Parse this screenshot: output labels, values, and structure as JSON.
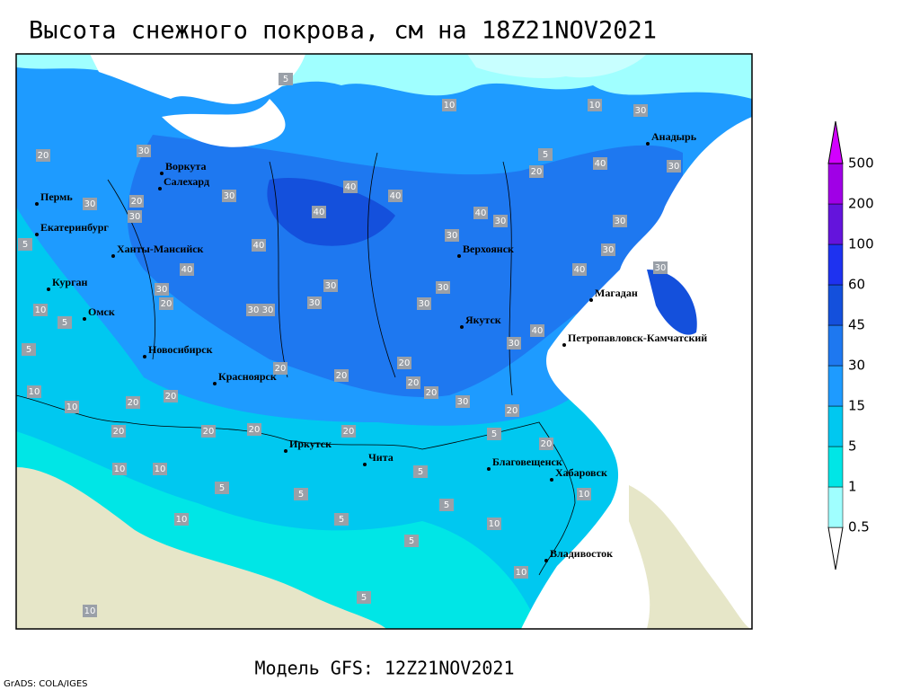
{
  "title": "Высота снежного покрова, см на 18Z21NOV2021",
  "map": {
    "cities": [
      "Воркута",
      "Салехард",
      "Пермь",
      "Екатеринбург",
      "Ханты-Мансийск",
      "Курган",
      "Омск",
      "Новосибирск",
      "Красноярск",
      "Иркутск",
      "Чита",
      "Верхоянск",
      "Якутск",
      "Магадан",
      "Петропавловск-Камчатский",
      "Анадырь",
      "Благовещенск",
      "Хабаровск",
      "Владивосток"
    ],
    "contour_labels": [
      5,
      10,
      10,
      30,
      5,
      20,
      40,
      30,
      20,
      30,
      20,
      30,
      30,
      30,
      40,
      40,
      40,
      40,
      30,
      30,
      30,
      30,
      40,
      30,
      40,
      30,
      20,
      40,
      30,
      30,
      30,
      30,
      40,
      30,
      10,
      5,
      30,
      30,
      20,
      20,
      20,
      20,
      20,
      30,
      20,
      10,
      10,
      20,
      20,
      20,
      20,
      20,
      20,
      20,
      5,
      5,
      5,
      5,
      5,
      5,
      10,
      5,
      10,
      10,
      5,
      10,
      10,
      10,
      10,
      5,
      5
    ]
  },
  "legend": {
    "levels": [
      "0.5",
      "1",
      "5",
      "15",
      "30",
      "45",
      "60",
      "100",
      "200",
      "500"
    ],
    "colors": [
      "#ffffff",
      "#a0ffff",
      "#00e6e6",
      "#00c8f0",
      "#1e9bff",
      "#1e78f0",
      "#1450dc",
      "#1e32f0",
      "#6414dc",
      "#a000e6",
      "#d200ff"
    ]
  },
  "footer": "Модель GFS: 12Z21NOV2021",
  "credit": "GrADS: COLA/IGES"
}
